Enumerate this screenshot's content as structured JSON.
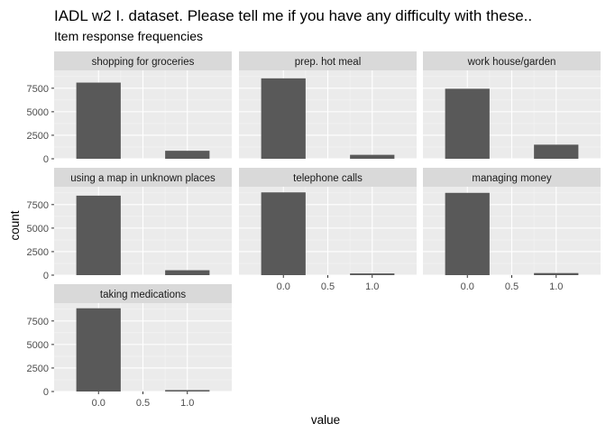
{
  "title": "IADL w2 I. dataset. Please tell me if you have any difficulty with these..",
  "subtitle": "Item response frequencies",
  "chart_data": {
    "type": "bar",
    "facet_layout": "wrap-3-columns",
    "xlabel": "value",
    "ylabel": "count",
    "x_ticks": [
      "0.0",
      "0.5",
      "1.0"
    ],
    "x_tick_values": [
      0,
      0.5,
      1
    ],
    "x_range": [
      -0.5,
      1.5
    ],
    "y_ticks": [
      "0",
      "2500",
      "5000",
      "7500"
    ],
    "y_tick_values": [
      0,
      2500,
      5000,
      7500
    ],
    "ylim": [
      0,
      9400
    ],
    "grid": true,
    "colors": {
      "panel_bg": "#ebebeb",
      "strip_bg": "#d9d9d9",
      "grid_major": "#ffffff",
      "grid_minor": "#f5f5f5",
      "bar": "#595959",
      "tick": "#333333"
    },
    "x": [
      0,
      1
    ],
    "panels": [
      {
        "name": "shopping for groceries",
        "values": [
          8100,
          850
        ]
      },
      {
        "name": "prep. hot meal",
        "values": [
          8550,
          420
        ]
      },
      {
        "name": "work house/garden",
        "values": [
          7450,
          1500
        ]
      },
      {
        "name": "using a map in unknown places",
        "values": [
          8450,
          520
        ]
      },
      {
        "name": "telephone calls",
        "values": [
          8800,
          180
        ]
      },
      {
        "name": "managing money",
        "values": [
          8750,
          220
        ]
      },
      {
        "name": "taking medications",
        "values": [
          8850,
          150
        ]
      }
    ]
  }
}
